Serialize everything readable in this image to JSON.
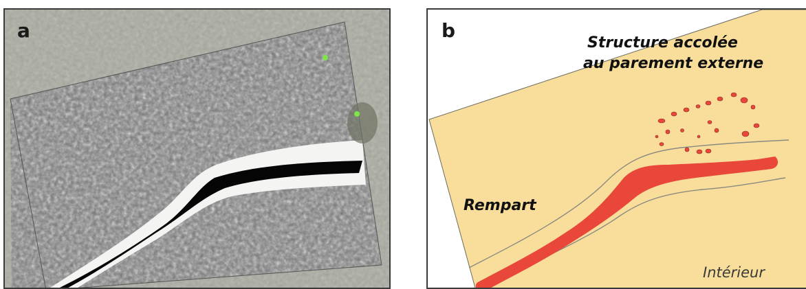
{
  "panels": {
    "a": {
      "letter": "a"
    },
    "b": {
      "letter": "b",
      "labels": {
        "structure_line1": "Structure accolée",
        "structure_line2": "au parement externe",
        "rempart": "Rempart",
        "interieur": "Intérieur"
      }
    }
  },
  "colors": {
    "survey_background": "#a7a79c",
    "rempart_fill": "#e8473a",
    "zone_fill": "#f9dd9b",
    "outline": "#8a8a80"
  }
}
